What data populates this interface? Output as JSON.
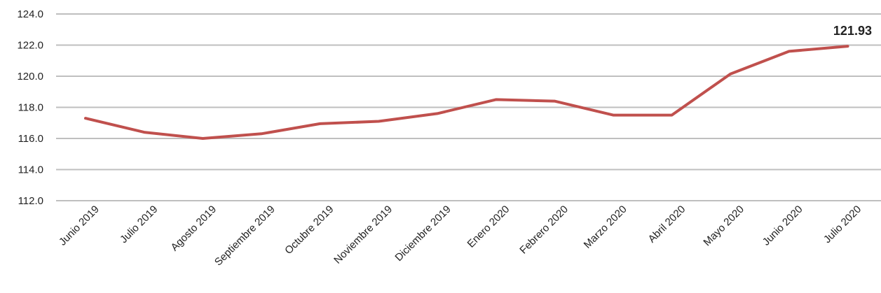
{
  "chart_data": {
    "type": "line",
    "title": "",
    "xlabel": "",
    "ylabel": "",
    "categories": [
      "Junio 2019",
      "Julio 2019",
      "Agosto 2019",
      "Septiembre 2019",
      "Octubre 2019",
      "Noviembre 2019",
      "Diciembre 2019",
      "Enero 2020",
      "Febrero 2020",
      "Marzo 2020",
      "Abril 2020",
      "Mayo 2020",
      "Junio 2020",
      "Julio 2020"
    ],
    "series": [
      {
        "color": "#c0504d",
        "values": [
          117.3,
          116.4,
          116.0,
          116.3,
          116.95,
          117.1,
          117.6,
          118.5,
          118.4,
          117.5,
          117.5,
          120.15,
          121.6,
          121.93
        ]
      }
    ],
    "ylim": [
      112.0,
      124.0
    ],
    "yticks": [
      "112.0",
      "114.0",
      "116.0",
      "118.0",
      "120.0",
      "122.0",
      "124.0"
    ],
    "grid": true,
    "legend": "none",
    "end_label": "121.93"
  }
}
